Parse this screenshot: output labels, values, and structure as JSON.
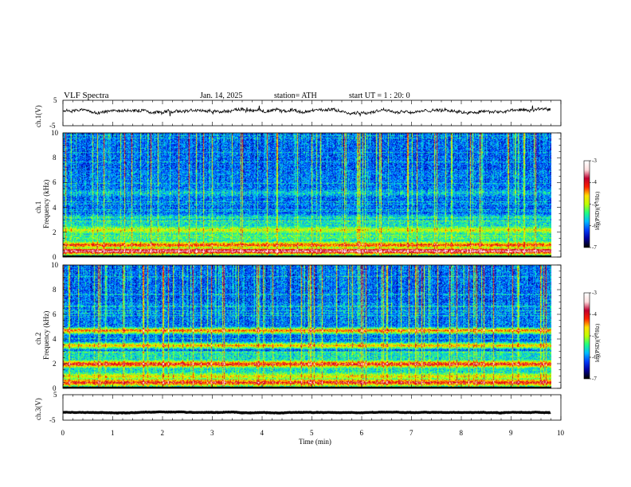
{
  "header": {
    "title": "VLF  Spectra",
    "date": "Jan. 14, 2025",
    "station": "station= ATH",
    "start": "start  UT  =   1 : 20: 0"
  },
  "colors": {
    "waveform": "#000000",
    "colormap": [
      "#000000",
      "#0000a0",
      "#0040ff",
      "#00c0ff",
      "#20ff80",
      "#c0ff00",
      "#ffe000",
      "#ff2000",
      "#c00030",
      "#ffe0e0",
      "#ffffff"
    ]
  },
  "chart_data": [
    {
      "type": "line",
      "panel": "ch1-waveform",
      "ylabel": "ch.1(V)",
      "y_ticks": [
        "5",
        "-5"
      ],
      "ylim": [
        -5,
        5
      ],
      "xlim": [
        0,
        10
      ],
      "level": 0.8,
      "amplitude": 0.8,
      "grid": false
    },
    {
      "type": "heatmap",
      "panel": "ch1-spectrogram",
      "ylabel": "ch.1\nFrequency  (kHz)",
      "ylabel_lines": [
        "ch.1",
        "Frequency  (kHz)"
      ],
      "y_ticks": [
        "0",
        "2",
        "4",
        "6",
        "8",
        "10"
      ],
      "ylim": [
        0,
        10
      ],
      "xlim": [
        0,
        9.8
      ],
      "colorbar_label": "log(PSD)(V²/Hz)",
      "colorbar_ticks": [
        "-3",
        "-4",
        "-5",
        "-6",
        "-7"
      ],
      "colorbar_range": [
        -7,
        -3
      ],
      "bands": [
        {
          "freq": 0.5,
          "level": -3.5
        },
        {
          "freq": 1.0,
          "level": -4.2
        },
        {
          "freq": 1.6,
          "level": -5.4
        },
        {
          "freq": 2.2,
          "level": -4.9
        },
        {
          "freq": 3.2,
          "level": -5.6
        },
        {
          "freq": 5.2,
          "level": -5.8
        }
      ]
    },
    {
      "type": "heatmap",
      "panel": "ch2-spectrogram",
      "ylabel": "ch.2\nFrequency  (kHz)",
      "ylabel_lines": [
        "ch.2",
        "Frequency  (kHz)"
      ],
      "y_ticks": [
        "0",
        "2",
        "4",
        "6",
        "8",
        "10"
      ],
      "ylim": [
        0,
        10
      ],
      "xlim": [
        0,
        9.8
      ],
      "colorbar_label": "log(PSD)(V²/Hz)",
      "colorbar_ticks": [
        "-3",
        "-4",
        "-5",
        "-6",
        "-7"
      ],
      "colorbar_range": [
        -7,
        -3
      ],
      "bands": [
        {
          "freq": 0.5,
          "level": -4.0
        },
        {
          "freq": 1.0,
          "level": -4.8
        },
        {
          "freq": 2.0,
          "level": -4.0
        },
        {
          "freq": 3.5,
          "level": -4.6
        },
        {
          "freq": 4.7,
          "level": -4.5
        }
      ]
    },
    {
      "type": "line",
      "panel": "ch3-waveform",
      "ylabel": "ch.3(V)",
      "y_ticks": [
        "5",
        "-5"
      ],
      "ylim": [
        -5,
        5
      ],
      "xlim": [
        0,
        10
      ],
      "level": -2.0,
      "amplitude": 0.2,
      "xlabel": "Time  (min)",
      "x_ticks": [
        "0",
        "1",
        "2",
        "3",
        "4",
        "5",
        "6",
        "7",
        "8",
        "9",
        "10"
      ],
      "grid": false
    }
  ]
}
